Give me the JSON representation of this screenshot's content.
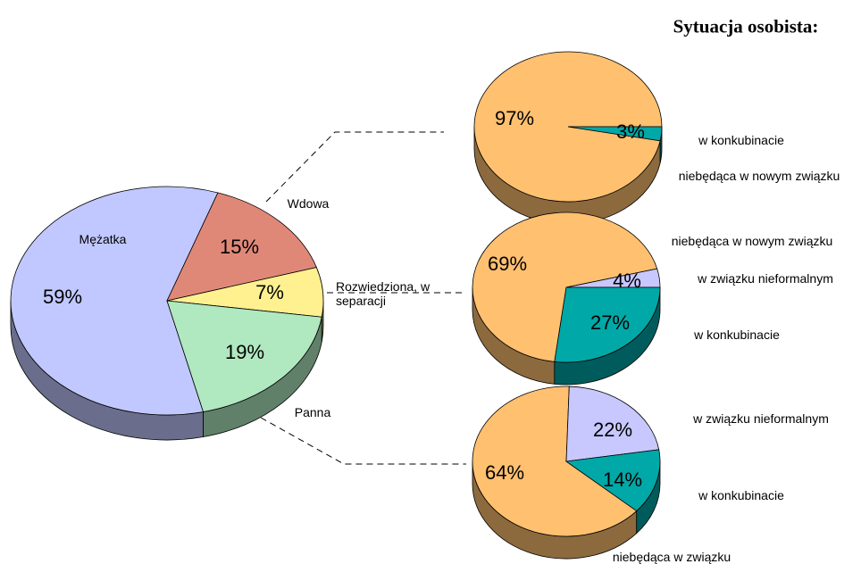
{
  "title": "Sytuacja osobista:",
  "chart_data": [
    {
      "type": "pie",
      "categories": [
        "Mężatka",
        "Wdowa",
        "Rozwiedziona, w separacji",
        "Panna"
      ],
      "values": [
        59,
        15,
        7,
        19
      ],
      "value_labels": [
        "59%",
        "15%",
        "7%",
        "19%"
      ],
      "colors": [
        "#c0c8ff",
        "#e08878",
        "#fff090",
        "#b0e8c0"
      ]
    },
    {
      "type": "pie",
      "categories": [
        "niebędąca w nowym związku",
        "w konkubinacie"
      ],
      "values": [
        97,
        3
      ],
      "value_labels": [
        "97%",
        "3%"
      ],
      "colors": [
        "#ffc070",
        "#00a8a8"
      ]
    },
    {
      "type": "pie",
      "categories": [
        "niebędąca w nowym związku",
        "w związku nieformalnym",
        "w konkubinacie"
      ],
      "values": [
        69,
        4,
        27
      ],
      "value_labels": [
        "69%",
        "4%",
        "27%"
      ],
      "colors": [
        "#ffc070",
        "#c8c8ff",
        "#00a8a8"
      ]
    },
    {
      "type": "pie",
      "categories": [
        "niebędąca w związku",
        "w związku nieformalnym",
        "w konkubinacie"
      ],
      "values": [
        64,
        22,
        14
      ],
      "value_labels": [
        "64%",
        "22%",
        "14%"
      ],
      "colors": [
        "#ffc070",
        "#c8c8ff",
        "#00a8a8"
      ]
    }
  ]
}
